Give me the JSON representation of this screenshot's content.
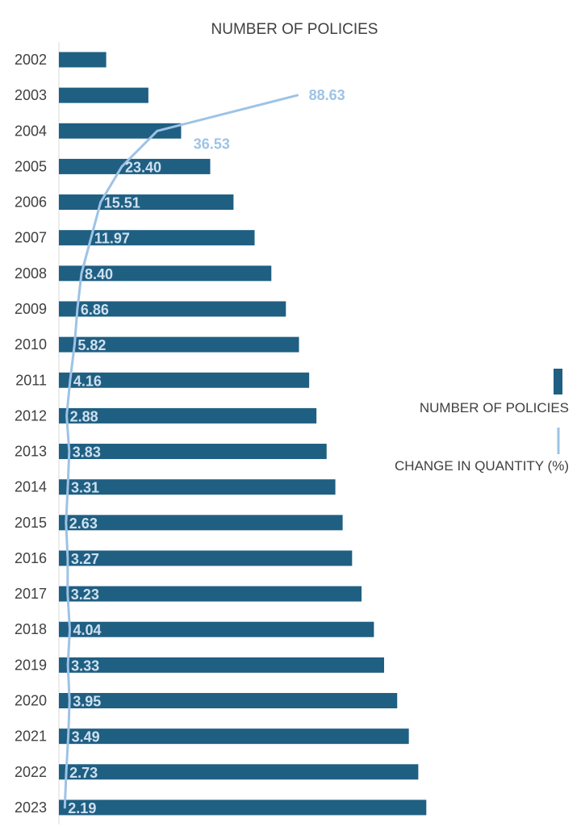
{
  "chart_data": {
    "type": "bar",
    "orientation": "horizontal",
    "title": "NUMBER OF POLICIES",
    "categories": [
      "2002",
      "2003",
      "2004",
      "2005",
      "2006",
      "2007",
      "2008",
      "2009",
      "2010",
      "2011",
      "2012",
      "2013",
      "2014",
      "2015",
      "2016",
      "2017",
      "2018",
      "2019",
      "2020",
      "2021",
      "2022",
      "2023"
    ],
    "series": [
      {
        "name": "NUMBER OF POLICIES",
        "kind": "bar",
        "color": "#1f5f82",
        "values": [
          6.5,
          12.3,
          16.8,
          20.8,
          24.0,
          26.9,
          29.2,
          31.2,
          33.0,
          34.4,
          35.4,
          36.8,
          38.0,
          39.0,
          40.3,
          41.6,
          43.3,
          44.7,
          46.5,
          48.1,
          49.4,
          50.5
        ]
      },
      {
        "name": "CHANGE IN QUANTITY (%)",
        "kind": "line",
        "color": "#9dc3e6",
        "values": [
          null,
          88.63,
          36.53,
          23.4,
          15.51,
          11.97,
          8.4,
          6.86,
          5.82,
          4.16,
          2.88,
          3.83,
          3.31,
          2.63,
          3.27,
          3.23,
          4.04,
          3.33,
          3.95,
          3.49,
          2.73,
          2.19
        ],
        "labels": [
          "",
          "88.63",
          "36.53",
          "23.40",
          "15.51",
          "11.97",
          "8.40",
          "6.86",
          "5.82",
          "4.16",
          "2.88",
          "3.83",
          "3.31",
          "2.63",
          "3.27",
          "3.23",
          "4.04",
          "3.33",
          "3.95",
          "3.49",
          "2.73",
          "2.19"
        ]
      }
    ],
    "xlim": [
      0,
      64
    ],
    "line_xlim": [
      0,
      173
    ],
    "legend_position": "right",
    "grid": false
  }
}
